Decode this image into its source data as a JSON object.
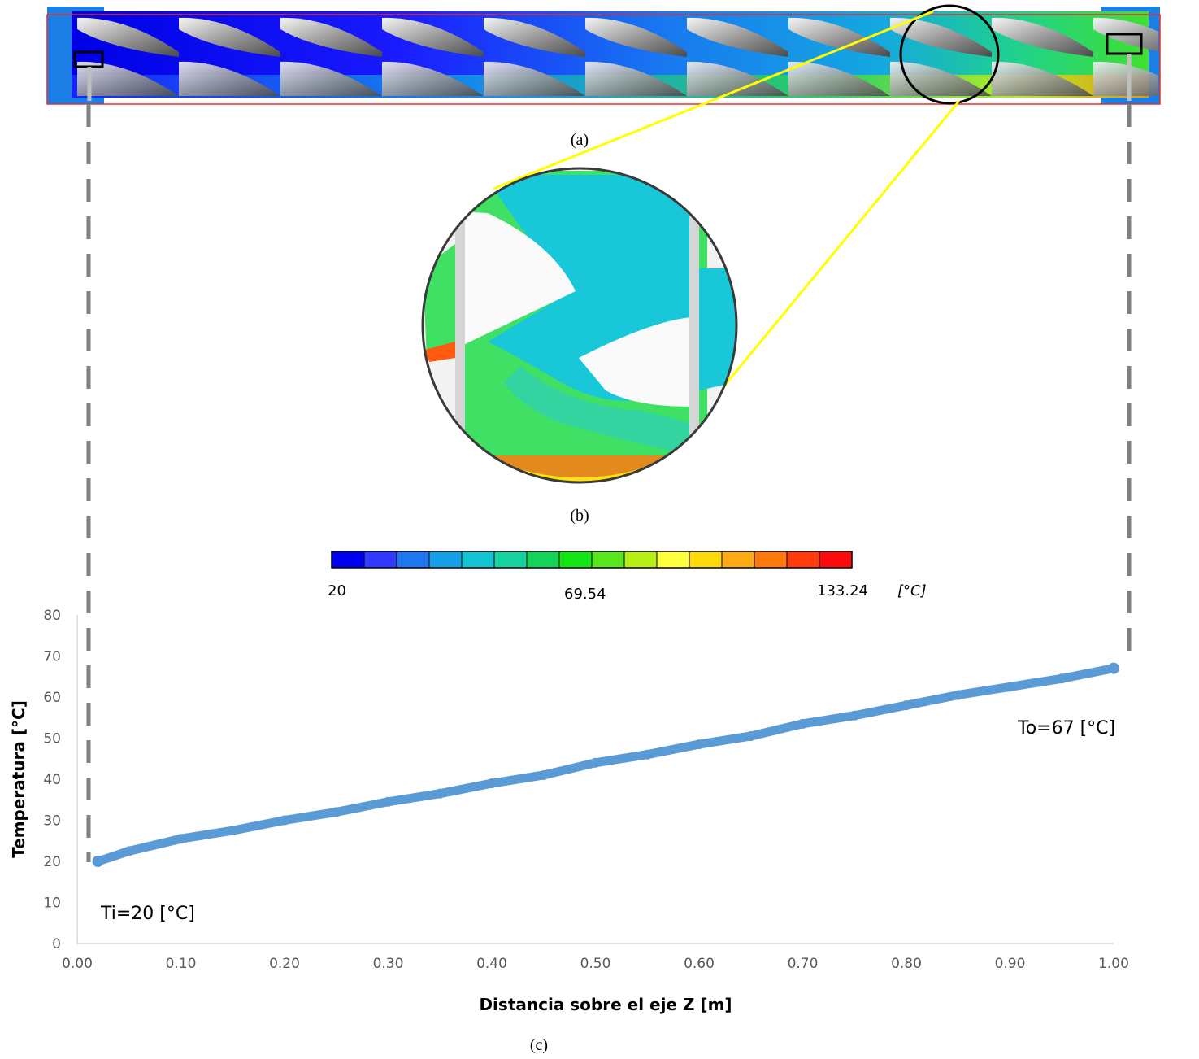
{
  "panels": {
    "a_label": "(a)",
    "b_label": "(b)",
    "c_label": "(c)"
  },
  "colors": {
    "series": "#5b9bd5",
    "zoom_line": "#ffff00",
    "dash_line": "#7f7f7f",
    "axis": "#d9d9d9",
    "tube_border": "#e03030"
  },
  "colorbar": {
    "min_label": "20",
    "mid_label": "69.54",
    "max_label": "133.24",
    "unit": "[°C]",
    "colors": [
      "#0000f0",
      "#2f3cff",
      "#1f78f0",
      "#14a0e6",
      "#12c3d4",
      "#16d4a0",
      "#16d35a",
      "#14e614",
      "#5ae61c",
      "#b4f014",
      "#ffff3c",
      "#ffd80a",
      "#ffaa14",
      "#ff7a0a",
      "#ff3c0a",
      "#ff0a0a"
    ]
  },
  "chart_data": {
    "type": "scatter",
    "xlabel": "Distancia sobre el eje Z [m]",
    "ylabel": "Temperatura [°C]",
    "xlim": [
      0.0,
      1.0
    ],
    "ylim": [
      0,
      80
    ],
    "x_ticks": [
      "0.00",
      "0.10",
      "0.20",
      "0.30",
      "0.40",
      "0.50",
      "0.60",
      "0.70",
      "0.80",
      "0.90",
      "1.00"
    ],
    "y_ticks": [
      "0",
      "10",
      "20",
      "30",
      "40",
      "50",
      "60",
      "70",
      "80"
    ],
    "grid": false,
    "legend": "none",
    "x": [
      0.02,
      0.05,
      0.1,
      0.15,
      0.2,
      0.25,
      0.3,
      0.35,
      0.4,
      0.45,
      0.5,
      0.55,
      0.6,
      0.65,
      0.7,
      0.75,
      0.8,
      0.85,
      0.9,
      0.95,
      1.0
    ],
    "y": [
      20,
      22.5,
      25.5,
      27.5,
      30,
      32,
      34.5,
      36.5,
      39,
      41,
      44,
      46,
      48.5,
      50.5,
      53.5,
      55.5,
      58,
      60.5,
      62.5,
      64.5,
      67
    ],
    "annotations": {
      "inlet": "Ti=20 [°C]",
      "outlet": "To=67 [°C]"
    }
  }
}
